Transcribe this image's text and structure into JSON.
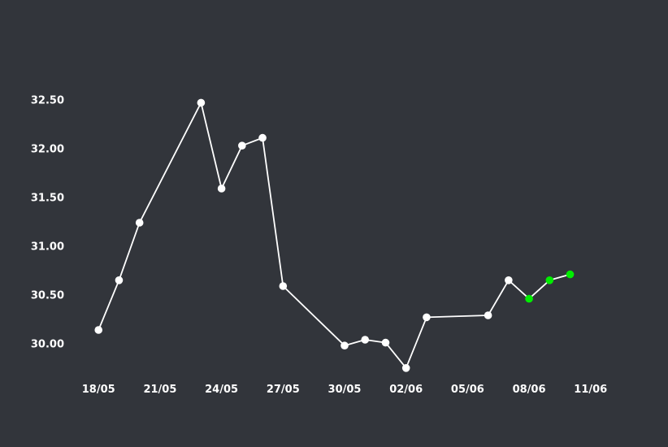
{
  "colors": {
    "background": "#32353b",
    "line": "#ffffff",
    "point": "#ffffff",
    "highlight_point": "#00ee00"
  },
  "chart_data": {
    "type": "line",
    "title": "",
    "xlabel": "",
    "ylabel": "",
    "grid": false,
    "legend": "none",
    "xlim": [
      "2024-05-17",
      "2024-06-12"
    ],
    "ylim": [
      29.7,
      32.7
    ],
    "x_ticks": [
      "18/05",
      "21/05",
      "24/05",
      "27/05",
      "30/05",
      "02/06",
      "05/06",
      "08/06",
      "11/06"
    ],
    "y_ticks": [
      "30.00",
      "30.50",
      "31.00",
      "31.50",
      "32.00",
      "32.50"
    ],
    "series": [
      {
        "points": [
          {
            "x": "2024-05-18",
            "y": 30.15
          },
          {
            "x": "2024-05-19",
            "y": 30.66
          },
          {
            "x": "2024-05-20",
            "y": 31.25
          },
          {
            "x": "2024-05-23",
            "y": 32.48
          },
          {
            "x": "2024-05-24",
            "y": 31.6
          },
          {
            "x": "2024-05-25",
            "y": 32.04
          },
          {
            "x": "2024-05-26",
            "y": 32.12
          },
          {
            "x": "2024-05-27",
            "y": 30.6
          },
          {
            "x": "2024-05-30",
            "y": 29.99
          },
          {
            "x": "2024-05-31",
            "y": 30.05
          },
          {
            "x": "2024-06-01",
            "y": 30.02
          },
          {
            "x": "2024-06-02",
            "y": 29.76
          },
          {
            "x": "2024-06-03",
            "y": 30.28
          },
          {
            "x": "2024-06-06",
            "y": 30.3
          },
          {
            "x": "2024-06-07",
            "y": 30.66
          },
          {
            "x": "2024-06-08",
            "y": 30.47,
            "highlight": true
          },
          {
            "x": "2024-06-09",
            "y": 30.66,
            "highlight": true
          },
          {
            "x": "2024-06-10",
            "y": 30.72,
            "highlight": true
          }
        ]
      }
    ]
  }
}
